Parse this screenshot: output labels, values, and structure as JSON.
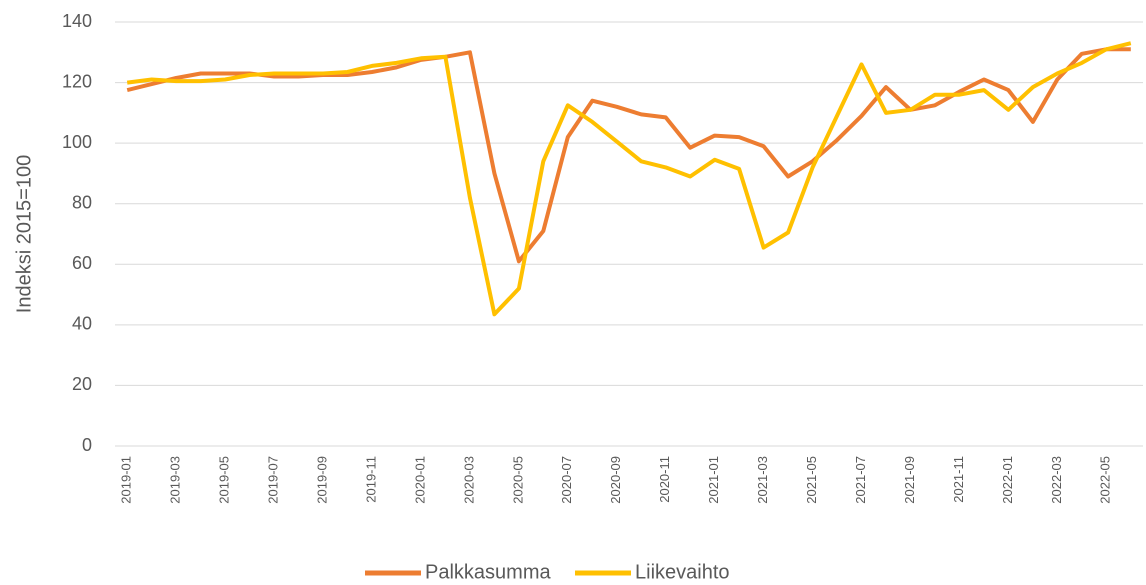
{
  "chart_data": {
    "type": "line",
    "y_label": "Indeksi 2015=100",
    "categories": [
      "2019-01",
      null,
      "2019-03",
      null,
      "2019-05",
      null,
      "2019-07",
      null,
      "2019-09",
      null,
      "2019-11",
      null,
      "2020-01",
      null,
      "2020-03",
      null,
      "2020-05",
      null,
      "2020-07",
      null,
      "2020-09",
      null,
      "2020-11",
      null,
      "2021-01",
      null,
      "2021-03",
      null,
      "2021-05",
      null,
      "2021-07",
      null,
      "2021-09",
      null,
      "2021-11",
      null,
      "2022-01",
      null,
      "2022-03",
      null,
      "2022-05",
      null
    ],
    "series": [
      {
        "name": "Palkkasumma",
        "color": "#ED7D31",
        "values": [
          117.5,
          119.5,
          121.5,
          123,
          123,
          123,
          122,
          122,
          122.5,
          122.5,
          123.5,
          125,
          127.5,
          128.5,
          130,
          90,
          61,
          71,
          102,
          114,
          112,
          109.5,
          108.5,
          98.5,
          102.5,
          102,
          99,
          89,
          94,
          101,
          109,
          118.5,
          111,
          112.5,
          117,
          121,
          117.5,
          107,
          121,
          129.5,
          131,
          131
        ]
      },
      {
        "name": "Liikevaihto",
        "color": "#FFC000",
        "values": [
          120,
          121,
          120.5,
          120.5,
          121,
          122.5,
          123,
          123,
          123,
          123.5,
          125.5,
          126.5,
          128,
          128.5,
          82,
          43.5,
          52,
          94,
          112.5,
          107,
          100.5,
          94,
          92,
          89,
          94.5,
          91.5,
          65.5,
          70.5,
          92,
          109,
          126,
          110,
          111,
          116,
          116,
          117.5,
          111,
          118.5,
          123,
          126.5,
          131,
          133
        ]
      }
    ],
    "ylim": [
      0,
      140
    ],
    "yticks": [
      0,
      20,
      40,
      60,
      80,
      100,
      120,
      140
    ],
    "grid": true,
    "legend": "bottom"
  }
}
